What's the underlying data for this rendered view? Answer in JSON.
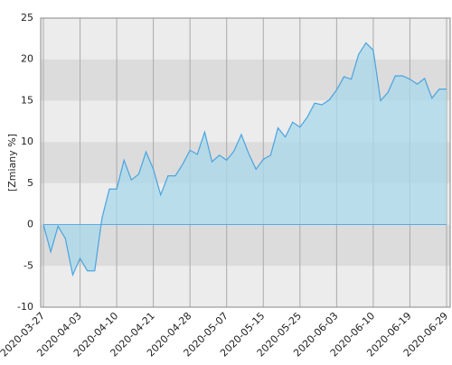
{
  "chart_data": {
    "type": "area",
    "ylabel": "[Zmiany %]",
    "categories": [
      "2020-03-27",
      null,
      null,
      null,
      null,
      "2020-04-03",
      null,
      null,
      null,
      null,
      "2020-04-10",
      null,
      null,
      null,
      null,
      "2020-04-21",
      null,
      null,
      null,
      null,
      "2020-04-28",
      null,
      null,
      null,
      null,
      "2020-05-07",
      null,
      null,
      null,
      null,
      "2020-05-15",
      null,
      null,
      null,
      null,
      "2020-05-25",
      null,
      null,
      null,
      null,
      "2020-06-03",
      null,
      null,
      null,
      null,
      "2020-06-10",
      null,
      null,
      null,
      null,
      "2020-06-19",
      null,
      null,
      null,
      null,
      "2020-06-29"
    ],
    "values": [
      0,
      -3.3,
      -0.2,
      -1.7,
      -6.1,
      -4.1,
      -5.6,
      -5.6,
      0.8,
      4.3,
      4.3,
      7.8,
      5.4,
      6.1,
      8.8,
      6.7,
      3.6,
      5.9,
      5.9,
      7.3,
      9.0,
      8.5,
      11.2,
      7.6,
      8.4,
      7.8,
      8.9,
      10.9,
      8.6,
      6.7,
      7.9,
      8.4,
      11.7,
      10.6,
      12.4,
      11.8,
      13.0,
      14.7,
      14.5,
      15.1,
      16.3,
      17.9,
      17.6,
      20.6,
      22.0,
      21.1,
      15.0,
      16.0,
      18.0,
      18.0,
      17.6,
      17.0,
      17.7,
      15.3,
      16.4,
      16.4
    ],
    "color": "#4aa3e0",
    "fill": "#a8d8ea",
    "ylim": [
      -10,
      25
    ],
    "yticks": [
      -10,
      -5,
      0,
      5,
      10,
      15,
      20,
      25
    ],
    "grid": true
  }
}
